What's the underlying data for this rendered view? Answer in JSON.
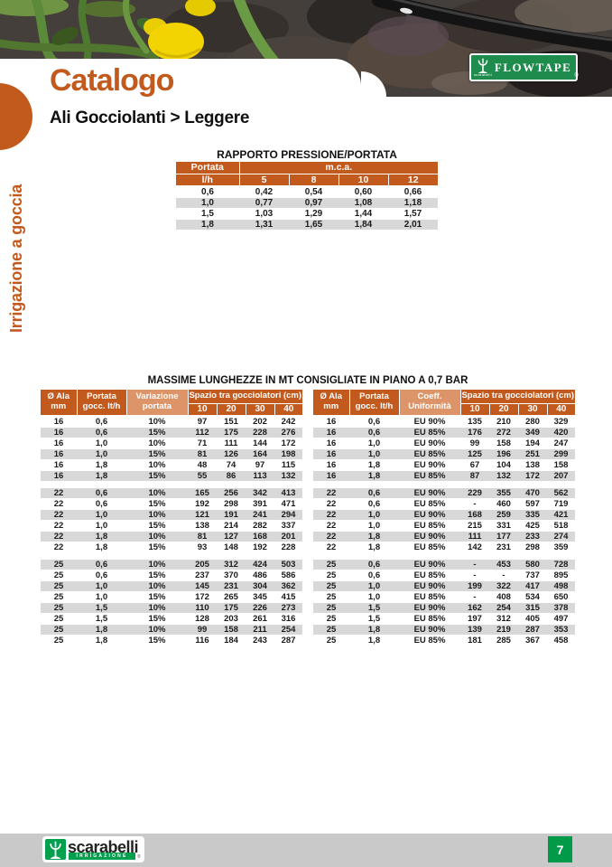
{
  "header": {
    "title": "Catalogo",
    "subtitle": "Ali Gocciolanti > Leggere",
    "brand_logo": {
      "label": "FLOWTAPE",
      "icon_caption": "scarabelli",
      "registered_mark": "®"
    }
  },
  "sidebar": {
    "category": "Irrigazione a goccia"
  },
  "colors": {
    "accent_orange": "#C35A1D",
    "table_header_orange": "#C35A1D",
    "table_header_light_orange": "#DE9469",
    "row_shade_gray": "#D8D8D8",
    "brand_green": "#00A04E",
    "flowtape_green": "#1E8C4D",
    "footer_bar_gray": "#C9C9C9"
  },
  "pressure_table": {
    "title": "RAPPORTO PRESSIONE/PORTATA",
    "row_header_top": "Portata",
    "row_header_bottom": "l/h",
    "col_group_header": "m.c.a.",
    "pressure_columns": [
      "5",
      "8",
      "10",
      "12"
    ],
    "rows": [
      [
        "0,6",
        "0,42",
        "0,54",
        "0,60",
        "0,66"
      ],
      [
        "1,0",
        "0,77",
        "0,97",
        "1,08",
        "1,18"
      ],
      [
        "1,5",
        "1,03",
        "1,29",
        "1,44",
        "1,57"
      ],
      [
        "1,8",
        "1,31",
        "1,65",
        "1,84",
        "2,01"
      ]
    ]
  },
  "max_length_tables": {
    "title": "MASSIME LUNGHEZZE IN MT CONSIGLIATE IN PIANO A 0,7 BAR",
    "spacing_header": "Spazio tra gocciolatori (cm)",
    "spacing_columns": [
      "10",
      "20",
      "30",
      "40"
    ],
    "left": {
      "col_headers": [
        [
          "Ø Ala",
          "mm"
        ],
        [
          "Portata",
          "gocc. lt/h"
        ],
        [
          "Variazione",
          "portata"
        ]
      ],
      "sections": [
        {
          "shaded_first": false,
          "rows": [
            [
              "16",
              "0,6",
              "10%",
              "97",
              "151",
              "202",
              "242"
            ],
            [
              "16",
              "0,6",
              "15%",
              "112",
              "175",
              "228",
              "276"
            ],
            [
              "16",
              "1,0",
              "10%",
              "71",
              "111",
              "144",
              "172"
            ],
            [
              "16",
              "1,0",
              "15%",
              "81",
              "126",
              "164",
              "198"
            ],
            [
              "16",
              "1,8",
              "10%",
              "48",
              "74",
              "97",
              "115"
            ],
            [
              "16",
              "1,8",
              "15%",
              "55",
              "86",
              "113",
              "132"
            ]
          ]
        },
        {
          "shaded_first": true,
          "rows": [
            [
              "22",
              "0,6",
              "10%",
              "165",
              "256",
              "342",
              "413"
            ],
            [
              "22",
              "0,6",
              "15%",
              "192",
              "298",
              "391",
              "471"
            ],
            [
              "22",
              "1,0",
              "10%",
              "121",
              "191",
              "241",
              "294"
            ],
            [
              "22",
              "1,0",
              "15%",
              "138",
              "214",
              "282",
              "337"
            ],
            [
              "22",
              "1,8",
              "10%",
              "81",
              "127",
              "168",
              "201"
            ],
            [
              "22",
              "1,8",
              "15%",
              "93",
              "148",
              "192",
              "228"
            ]
          ]
        },
        {
          "shaded_first": true,
          "rows": [
            [
              "25",
              "0,6",
              "10%",
              "205",
              "312",
              "424",
              "503"
            ],
            [
              "25",
              "0,6",
              "15%",
              "237",
              "370",
              "486",
              "586"
            ],
            [
              "25",
              "1,0",
              "10%",
              "145",
              "231",
              "304",
              "362"
            ],
            [
              "25",
              "1,0",
              "15%",
              "172",
              "265",
              "345",
              "415"
            ],
            [
              "25",
              "1,5",
              "10%",
              "110",
              "175",
              "226",
              "273"
            ],
            [
              "25",
              "1,5",
              "15%",
              "128",
              "203",
              "261",
              "316"
            ],
            [
              "25",
              "1,8",
              "10%",
              "99",
              "158",
              "211",
              "254"
            ],
            [
              "25",
              "1,8",
              "15%",
              "116",
              "184",
              "243",
              "287"
            ]
          ]
        }
      ]
    },
    "right": {
      "col_headers": [
        [
          "Ø Ala",
          "mm"
        ],
        [
          "Portata",
          "gocc. lt/h"
        ],
        [
          "Coeff.",
          "Uniformità"
        ]
      ],
      "sections": [
        {
          "shaded_first": false,
          "rows": [
            [
              "16",
              "0,6",
              "EU 90%",
              "135",
              "210",
              "280",
              "329"
            ],
            [
              "16",
              "0,6",
              "EU 85%",
              "176",
              "272",
              "349",
              "420"
            ],
            [
              "16",
              "1,0",
              "EU 90%",
              "99",
              "158",
              "194",
              "247"
            ],
            [
              "16",
              "1,0",
              "EU 85%",
              "125",
              "196",
              "251",
              "299"
            ],
            [
              "16",
              "1,8",
              "EU 90%",
              "67",
              "104",
              "138",
              "158"
            ],
            [
              "16",
              "1,8",
              "EU 85%",
              "87",
              "132",
              "172",
              "207"
            ]
          ]
        },
        {
          "shaded_first": true,
          "rows": [
            [
              "22",
              "0,6",
              "EU 90%",
              "229",
              "355",
              "470",
              "562"
            ],
            [
              "22",
              "0,6",
              "EU 85%",
              "-",
              "460",
              "597",
              "719"
            ],
            [
              "22",
              "1,0",
              "EU 90%",
              "168",
              "259",
              "335",
              "421"
            ],
            [
              "22",
              "1,0",
              "EU 85%",
              "215",
              "331",
              "425",
              "518"
            ],
            [
              "22",
              "1,8",
              "EU 90%",
              "111",
              "177",
              "233",
              "274"
            ],
            [
              "22",
              "1,8",
              "EU 85%",
              "142",
              "231",
              "298",
              "359"
            ]
          ]
        },
        {
          "shaded_first": true,
          "rows": [
            [
              "25",
              "0,6",
              "EU 90%",
              "-",
              "453",
              "580",
              "728"
            ],
            [
              "25",
              "0,6",
              "EU 85%",
              "-",
              "-",
              "737",
              "895"
            ],
            [
              "25",
              "1,0",
              "EU 90%",
              "199",
              "322",
              "417",
              "498"
            ],
            [
              "25",
              "1,0",
              "EU 85%",
              "-",
              "408",
              "534",
              "650"
            ],
            [
              "25",
              "1,5",
              "EU 90%",
              "162",
              "254",
              "315",
              "378"
            ],
            [
              "25",
              "1,5",
              "EU 85%",
              "197",
              "312",
              "405",
              "497"
            ],
            [
              "25",
              "1,8",
              "EU 90%",
              "139",
              "219",
              "287",
              "353"
            ],
            [
              "25",
              "1,8",
              "EU 85%",
              "181",
              "285",
              "367",
              "458"
            ]
          ]
        }
      ]
    }
  },
  "footer": {
    "logo_text": "scarabelli",
    "logo_subtext": "IRRIGAZIONE",
    "registered_mark": "®",
    "page_number": "7"
  }
}
